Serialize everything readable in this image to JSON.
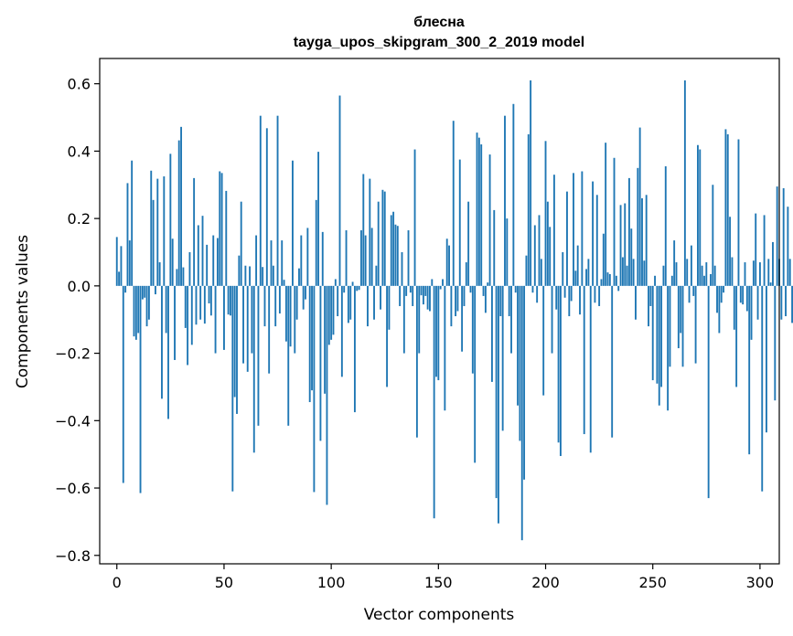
{
  "chart_data": {
    "type": "bar",
    "title_lines": [
      "блесна",
      "tayga_upos_skipgram_300_2_2019 model"
    ],
    "xlabel": "Vector components",
    "ylabel": "Components values",
    "xlim": [
      -8,
      309
    ],
    "ylim": [
      -0.825,
      0.675
    ],
    "x_ticks": [
      0,
      50,
      100,
      150,
      200,
      250,
      300
    ],
    "y_ticks": [
      -0.8,
      -0.6,
      -0.4,
      -0.2,
      0.0,
      0.2,
      0.4,
      0.6
    ],
    "y_tick_labels": [
      "−0.8",
      "−0.6",
      "−0.4",
      "−0.2",
      "0.0",
      "0.2",
      "0.4",
      "0.6"
    ],
    "color": "#1f77b4",
    "values": [
      0.145,
      0.042,
      0.118,
      -0.585,
      -0.02,
      0.305,
      0.135,
      0.372,
      -0.15,
      -0.16,
      -0.14,
      -0.615,
      -0.04,
      -0.035,
      -0.12,
      -0.1,
      0.342,
      0.255,
      -0.025,
      0.318,
      0.07,
      -0.335,
      0.325,
      -0.14,
      -0.395,
      0.392,
      0.14,
      -0.22,
      0.05,
      0.432,
      0.472,
      0.055,
      -0.125,
      -0.235,
      0.1,
      -0.175,
      0.32,
      -0.115,
      0.18,
      -0.1,
      0.208,
      -0.112,
      0.122,
      -0.052,
      -0.088,
      0.15,
      -0.2,
      0.142,
      0.34,
      0.335,
      -0.19,
      0.282,
      -0.085,
      -0.088,
      -0.61,
      -0.33,
      -0.38,
      0.09,
      0.25,
      -0.23,
      0.06,
      -0.255,
      0.058,
      -0.2,
      -0.495,
      0.15,
      -0.415,
      0.505,
      0.056,
      -0.12,
      0.468,
      -0.26,
      0.135,
      0.06,
      -0.12,
      0.505,
      -0.082,
      0.135,
      0.018,
      -0.165,
      -0.415,
      -0.18,
      0.372,
      -0.2,
      -0.1,
      0.052,
      0.15,
      -0.07,
      -0.04,
      0.172,
      -0.345,
      -0.31,
      -0.612,
      0.255,
      0.398,
      -0.46,
      0.16,
      -0.32,
      -0.65,
      -0.175,
      -0.16,
      -0.145,
      0.02,
      -0.09,
      0.565,
      -0.27,
      -0.02,
      0.165,
      -0.11,
      -0.1,
      0.012,
      -0.375,
      -0.015,
      -0.012,
      0.165,
      0.332,
      0.15,
      -0.12,
      0.318,
      0.172,
      -0.1,
      0.06,
      0.25,
      -0.07,
      0.285,
      0.28,
      -0.3,
      -0.13,
      0.21,
      0.22,
      0.182,
      0.178,
      -0.06,
      0.1,
      -0.2,
      -0.03,
      0.165,
      -0.02,
      -0.06,
      0.405,
      -0.45,
      -0.2,
      -0.028,
      -0.055,
      -0.03,
      -0.07,
      -0.075,
      0.02,
      -0.69,
      -0.27,
      -0.28,
      -0.01,
      0.02,
      -0.37,
      0.14,
      0.12,
      -0.12,
      0.49,
      -0.09,
      -0.075,
      0.375,
      -0.195,
      -0.06,
      0.07,
      0.25,
      -0.02,
      -0.26,
      -0.525,
      0.455,
      0.44,
      0.42,
      -0.03,
      -0.08,
      0.01,
      0.39,
      -0.285,
      0.225,
      -0.63,
      -0.705,
      -0.09,
      -0.43,
      0.505,
      0.2,
      -0.09,
      -0.2,
      0.54,
      -0.02,
      -0.355,
      -0.46,
      -0.755,
      -0.575,
      0.09,
      0.45,
      0.61,
      -0.02,
      0.18,
      -0.05,
      0.21,
      0.08,
      -0.325,
      0.43,
      0.25,
      0.175,
      -0.2,
      0.33,
      -0.07,
      -0.465,
      -0.505,
      0.1,
      -0.035,
      0.28,
      -0.09,
      -0.045,
      0.335,
      0.045,
      0.12,
      -0.085,
      0.34,
      -0.44,
      0.05,
      0.08,
      -0.495,
      0.31,
      -0.05,
      0.27,
      -0.06,
      0.02,
      0.155,
      0.425,
      0.04,
      0.035,
      -0.45,
      0.38,
      0.03,
      -0.015,
      0.24,
      0.085,
      0.245,
      0.06,
      0.32,
      0.17,
      0.08,
      -0.1,
      0.35,
      0.47,
      0.26,
      0.075,
      0.27,
      -0.12,
      -0.06,
      -0.28,
      0.03,
      -0.29,
      -0.355,
      -0.3,
      0.06,
      0.355,
      -0.37,
      -0.24,
      0.03,
      0.135,
      0.07,
      -0.185,
      -0.14,
      -0.24,
      0.61,
      0.08,
      -0.05,
      0.12,
      -0.03,
      -0.23,
      0.418,
      0.405,
      0.06,
      0.03,
      0.07,
      -0.63,
      0.035,
      0.3,
      0.06,
      -0.08,
      -0.14,
      -0.05,
      -0.02,
      0.465,
      0.45,
      0.205,
      0.085,
      -0.13,
      -0.3,
      0.435,
      -0.05,
      -0.055,
      0.07,
      -0.075,
      -0.5,
      -0.16,
      0.075,
      0.215,
      -0.1,
      0.07,
      -0.61,
      0.21,
      -0.435,
      0.08,
      0.01,
      0.13,
      -0.34,
      0.295,
      0.08,
      -0.1,
      0.29,
      -0.09,
      0.235,
      0.08,
      -0.11
    ]
  }
}
